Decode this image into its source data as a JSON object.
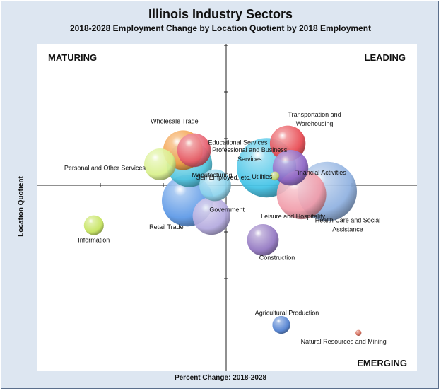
{
  "page": {
    "title": "Illinois Industry Sectors",
    "subtitle": "2018-2028 Employment Change by Location Quotient by 2018 Employment"
  },
  "quadrants": {
    "top_left": "MATURING",
    "top_right": "LEADING",
    "bottom_right": "EMERGING"
  },
  "chart_data": {
    "type": "scatter",
    "subtype": "bubble",
    "title": "Illinois Industry Sectors",
    "subtitle": "2018-2028 Employment Change by Location Quotient by 2018 Employment",
    "xlabel": "Percent Change: 2018-2028",
    "ylabel": "Location Quotient",
    "grid": false,
    "points": [
      {
        "name": "Transportation and Warehousing",
        "label_lines": [
          "Transportation and",
          "Warehousing"
        ],
        "x": 0.67,
        "y": 0.136,
        "size": 0.18,
        "color": "#e8474f"
      },
      {
        "name": "Wholesale Trade",
        "label_lines": [
          "Wholesale Trade"
        ],
        "x": -0.47,
        "y": 0.114,
        "size": 0.2,
        "color": "#f39a3c"
      },
      {
        "name": "Educational Services",
        "label_lines": [
          "Educational Services"
        ],
        "x": -0.35,
        "y": 0.114,
        "size": 0.17,
        "color": "#e65b6b"
      },
      {
        "name": "Personal and Other Services",
        "label_lines": [
          "Personal and Other Services"
        ],
        "x": -0.72,
        "y": 0.068,
        "size": 0.16,
        "color": "#d8f08a"
      },
      {
        "name": "Manufacturing",
        "label_lines": [
          "Manufacturing"
        ],
        "x": -0.4,
        "y": 0.068,
        "size": 0.23,
        "color": "#4ec4de"
      },
      {
        "name": "Professional and Business Services",
        "label_lines": [
          "Professional and Business",
          "Services"
        ],
        "x": 0.44,
        "y": 0.057,
        "size": 0.3,
        "color": "#3fc2e6"
      },
      {
        "name": "Financial Activities",
        "label_lines": [
          "Financial Activities"
        ],
        "x": 0.7,
        "y": 0.057,
        "size": 0.18,
        "color": "#8a62c4"
      },
      {
        "name": "Utilities",
        "label_lines": [
          "Utilities"
        ],
        "x": 0.53,
        "y": 0.03,
        "size": 0.045,
        "color": "#c7d96a"
      },
      {
        "name": "Self Employed, etc.",
        "label_lines": [
          "Self Employed, etc."
        ],
        "x": -0.12,
        "y": 0.0,
        "size": 0.16,
        "color": "#8bd3ec"
      },
      {
        "name": "Health Care and Social Assistance",
        "label_lines": [
          "Health Care and Social",
          "Assistance"
        ],
        "x": 1.1,
        "y": -0.02,
        "size": 0.3,
        "color": "#8eb0e0"
      },
      {
        "name": "Leisure and Hospitality",
        "label_lines": [
          "Leisure and Hospitality"
        ],
        "x": 0.82,
        "y": -0.03,
        "size": 0.25,
        "color": "#f09aa8"
      },
      {
        "name": "Retail Trade",
        "label_lines": [
          "Retail Trade"
        ],
        "x": -0.42,
        "y": -0.05,
        "size": 0.26,
        "color": "#5a97e6"
      },
      {
        "name": "Government",
        "label_lines": [
          "Government"
        ],
        "x": -0.16,
        "y": -0.1,
        "size": 0.19,
        "color": "#b2a8de"
      },
      {
        "name": "Information",
        "label_lines": [
          "Information"
        ],
        "x": -1.44,
        "y": -0.13,
        "size": 0.1,
        "color": "#c4e35a"
      },
      {
        "name": "Construction",
        "label_lines": [
          "Construction"
        ],
        "x": 0.4,
        "y": -0.178,
        "size": 0.16,
        "color": "#9074c0"
      },
      {
        "name": "Agricultural Production",
        "label_lines": [
          "Agricultural Production"
        ],
        "x": 0.6,
        "y": -0.454,
        "size": 0.09,
        "color": "#4d7ed0"
      },
      {
        "name": "Natural Resources and Mining",
        "label_lines": [
          "Natural Resources and Mining"
        ],
        "x": 1.44,
        "y": -0.48,
        "size": 0.03,
        "color": "#d3614d"
      }
    ]
  }
}
